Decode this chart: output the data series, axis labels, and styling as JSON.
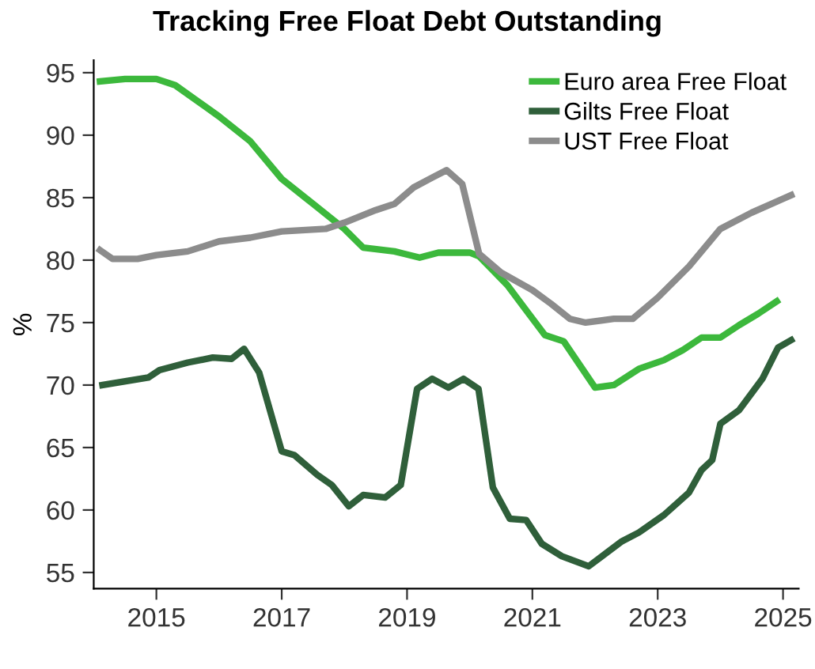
{
  "chart_data": {
    "type": "line",
    "title": "Tracking Free Float Debt Outstanding",
    "ylabel": "%",
    "xlim": [
      2014.0,
      2025.25
    ],
    "xticks": [
      2015,
      2017,
      2019,
      2021,
      2023,
      2025
    ],
    "ylim": [
      53.7,
      96
    ],
    "yticks": [
      55,
      60,
      65,
      70,
      75,
      80,
      85,
      90,
      95
    ],
    "grid": false,
    "legend": "top right",
    "marker": "none",
    "line_style": "solid",
    "series": [
      {
        "name": "Euro area Free Float",
        "color": "#3cb83c",
        "x": [
          2014.1,
          2014.5,
          2015.0,
          2015.3,
          2016.0,
          2016.5,
          2017.0,
          2017.5,
          2018.0,
          2018.3,
          2018.8,
          2019.2,
          2019.5,
          2020.0,
          2020.15,
          2020.6,
          2020.9,
          2021.2,
          2021.5,
          2022.0,
          2022.3,
          2022.7,
          2023.1,
          2023.4,
          2023.7,
          2024.0,
          2024.3,
          2024.6,
          2024.9
        ],
        "values": [
          94.3,
          94.5,
          94.5,
          94.0,
          91.5,
          89.5,
          86.5,
          84.5,
          82.5,
          81.0,
          80.7,
          80.2,
          80.6,
          80.6,
          80.3,
          78.0,
          76.0,
          74.0,
          73.5,
          69.8,
          70.0,
          71.3,
          72.0,
          72.8,
          73.8,
          73.8,
          74.8,
          75.7,
          76.7
        ]
      },
      {
        "name": "Gilts Free Float",
        "color": "#2f5f3a",
        "x": [
          2014.14,
          2014.87,
          2015.05,
          2015.5,
          2015.9,
          2016.2,
          2016.4,
          2016.64,
          2017.0,
          2017.2,
          2017.57,
          2017.8,
          2018.07,
          2018.3,
          2018.65,
          2018.9,
          2019.16,
          2019.4,
          2019.66,
          2019.9,
          2020.14,
          2020.37,
          2020.64,
          2020.9,
          2021.15,
          2021.47,
          2021.9,
          2022.43,
          2022.7,
          2023.1,
          2023.5,
          2023.7,
          2023.87,
          2024.0,
          2024.3,
          2024.67,
          2024.92,
          2025.13
        ],
        "values": [
          70.0,
          70.6,
          71.2,
          71.8,
          72.2,
          72.1,
          72.9,
          71.0,
          64.7,
          64.4,
          62.8,
          62.0,
          60.3,
          61.2,
          61.0,
          62.0,
          69.7,
          70.5,
          69.8,
          70.5,
          69.7,
          61.8,
          59.3,
          59.2,
          57.3,
          56.3,
          55.5,
          57.5,
          58.2,
          59.6,
          61.4,
          63.2,
          64.0,
          66.9,
          68.0,
          70.5,
          73.0,
          73.6
        ]
      },
      {
        "name": "UST Free Float",
        "color": "#8c8c8c",
        "x": [
          2014.1,
          2014.3,
          2014.7,
          2015.0,
          2015.5,
          2016.0,
          2016.5,
          2017.0,
          2017.7,
          2018.0,
          2018.5,
          2018.8,
          2019.1,
          2019.4,
          2019.63,
          2019.88,
          2020.15,
          2020.5,
          2021.0,
          2021.3,
          2021.6,
          2021.85,
          2022.3,
          2022.6,
          2023.0,
          2023.5,
          2024.0,
          2024.5,
          2025.13
        ],
        "values": [
          80.8,
          80.1,
          80.1,
          80.4,
          80.7,
          81.5,
          81.8,
          82.3,
          82.5,
          83.0,
          84.0,
          84.5,
          85.8,
          86.6,
          87.2,
          86.1,
          80.5,
          79.0,
          77.6,
          76.5,
          75.3,
          75.0,
          75.3,
          75.3,
          77.0,
          79.5,
          82.5,
          83.8,
          85.2
        ]
      }
    ]
  }
}
